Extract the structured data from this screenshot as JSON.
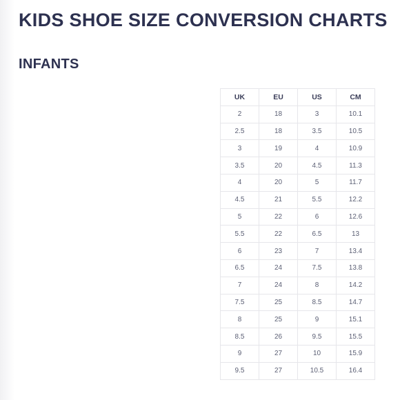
{
  "title": "KIDS SHOE SIZE CONVERSION CHARTS",
  "section": "INFANTS",
  "table": {
    "headers": [
      "UK",
      "EU",
      "US",
      "CM"
    ],
    "rows": [
      [
        "2",
        "18",
        "3",
        "10.1"
      ],
      [
        "2.5",
        "18",
        "3.5",
        "10.5"
      ],
      [
        "3",
        "19",
        "4",
        "10.9"
      ],
      [
        "3.5",
        "20",
        "4.5",
        "11.3"
      ],
      [
        "4",
        "20",
        "5",
        "11.7"
      ],
      [
        "4.5",
        "21",
        "5.5",
        "12.2"
      ],
      [
        "5",
        "22",
        "6",
        "12.6"
      ],
      [
        "5.5",
        "22",
        "6.5",
        "13"
      ],
      [
        "6",
        "23",
        "7",
        "13.4"
      ],
      [
        "6.5",
        "24",
        "7.5",
        "13.8"
      ],
      [
        "7",
        "24",
        "8",
        "14.2"
      ],
      [
        "7.5",
        "25",
        "8.5",
        "14.7"
      ],
      [
        "8",
        "25",
        "9",
        "15.1"
      ],
      [
        "8.5",
        "26",
        "9.5",
        "15.5"
      ],
      [
        "9",
        "27",
        "10",
        "15.9"
      ],
      [
        "9.5",
        "27",
        "10.5",
        "16.4"
      ]
    ]
  }
}
